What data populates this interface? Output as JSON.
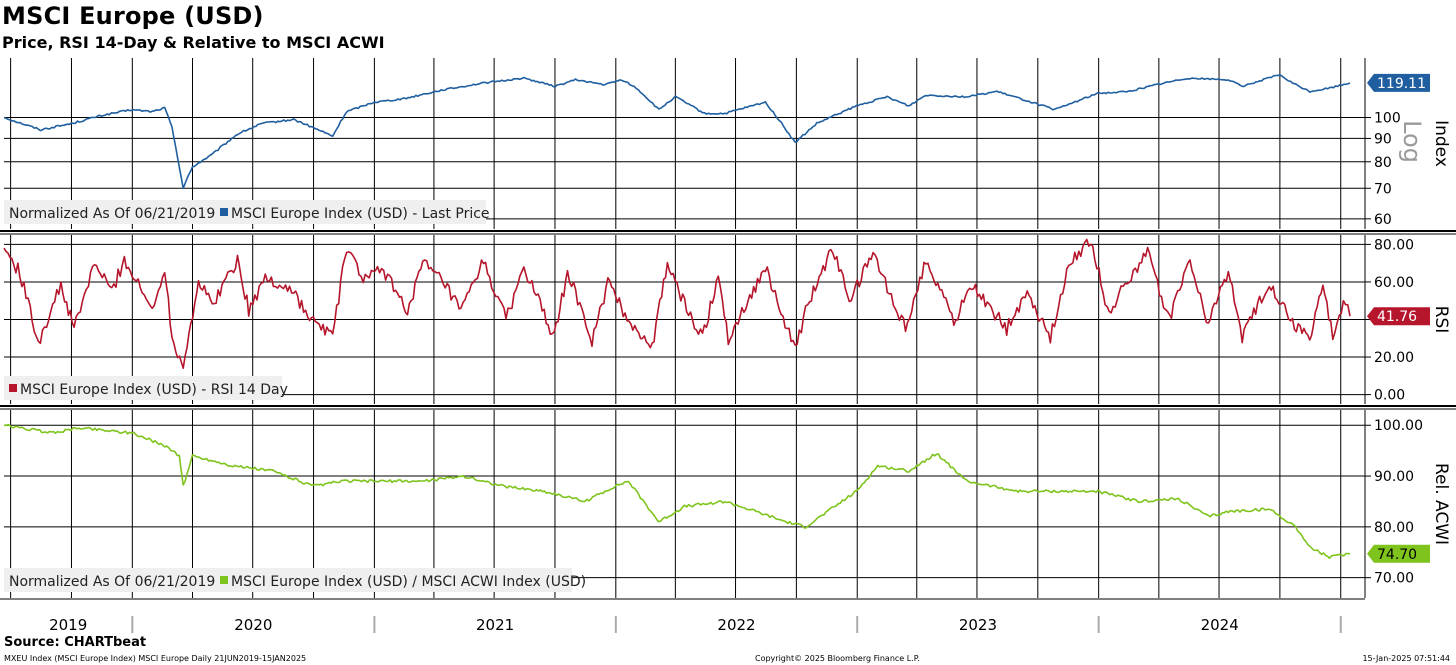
{
  "header": {
    "title": "MSCI Europe (USD)",
    "subtitle": "Price, RSI 14-Day & Relative to MSCI ACWI"
  },
  "footer": {
    "source": "Source: CHARTbeat",
    "left": "MXEU Index (MSCI Europe Index) MSCI Europe  Daily 21JUN2019-15JAN2025",
    "center": "Copyright© 2025 Bloomberg Finance L.P.",
    "right": "15-Jan-2025 07:51:44"
  },
  "chart_data": [
    {
      "type": "line",
      "panel": "price",
      "axis_title": "Index",
      "scale_note": "Log",
      "log_scale": true,
      "ylim": [
        57,
        135
      ],
      "ticks": [
        "100",
        "90",
        "80",
        "70",
        "60"
      ],
      "tick_values": [
        100,
        90,
        80,
        70,
        60
      ],
      "legend_prefix": "Normalized As Of 06/21/2019",
      "legend_placement": "bottom-left",
      "color": "#1f5fa0",
      "last_value": "119.11",
      "series": [
        {
          "name": "MSCI Europe Index (USD) - Last Price",
          "points": [
            [
              "2019-06-21",
              100
            ],
            [
              "2019-08-15",
              94
            ],
            [
              "2019-10-01",
              97
            ],
            [
              "2019-11-15",
              101
            ],
            [
              "2019-12-31",
              104
            ],
            [
              "2020-01-31",
              103
            ],
            [
              "2020-02-19",
              105
            ],
            [
              "2020-03-01",
              95
            ],
            [
              "2020-03-12",
              78
            ],
            [
              "2020-03-18",
              70
            ],
            [
              "2020-04-01",
              78
            ],
            [
              "2020-05-01",
              83
            ],
            [
              "2020-06-08",
              92
            ],
            [
              "2020-07-15",
              97
            ],
            [
              "2020-09-01",
              99
            ],
            [
              "2020-10-30",
              91
            ],
            [
              "2020-11-20",
              103
            ],
            [
              "2020-12-31",
              108
            ],
            [
              "2021-02-15",
              110
            ],
            [
              "2021-04-15",
              115
            ],
            [
              "2021-06-15",
              119
            ],
            [
              "2021-08-15",
              122
            ],
            [
              "2021-10-01",
              117
            ],
            [
              "2021-11-01",
              121
            ],
            [
              "2021-12-15",
              118
            ],
            [
              "2022-01-10",
              121
            ],
            [
              "2022-02-01",
              116
            ],
            [
              "2022-03-07",
              104
            ],
            [
              "2022-04-01",
              111
            ],
            [
              "2022-05-15",
              102
            ],
            [
              "2022-06-15",
              102
            ],
            [
              "2022-08-15",
              108
            ],
            [
              "2022-09-29",
              88
            ],
            [
              "2022-11-01",
              97
            ],
            [
              "2022-12-31",
              106
            ],
            [
              "2023-02-15",
              111
            ],
            [
              "2023-03-20",
              106
            ],
            [
              "2023-04-15",
              112
            ],
            [
              "2023-06-15",
              111
            ],
            [
              "2023-07-31",
              114
            ],
            [
              "2023-10-27",
              104
            ],
            [
              "2023-12-31",
              113
            ],
            [
              "2024-02-15",
              114
            ],
            [
              "2024-03-28",
              118
            ],
            [
              "2024-05-15",
              122
            ],
            [
              "2024-07-15",
              121
            ],
            [
              "2024-08-05",
              117
            ],
            [
              "2024-09-30",
              124
            ],
            [
              "2024-10-20",
              119
            ],
            [
              "2024-11-15",
              114
            ],
            [
              "2024-12-15",
              116
            ],
            [
              "2025-01-15",
              119.11
            ]
          ]
        }
      ]
    },
    {
      "type": "line",
      "panel": "rsi",
      "axis_title": "RSI",
      "ylim": [
        -5,
        85
      ],
      "ticks": [
        "80.00",
        "60.00",
        "40.00",
        "20.00",
        "0.00"
      ],
      "tick_values": [
        80,
        60,
        40,
        20,
        0
      ],
      "legend_placement": "bottom-left",
      "color": "#b5162b",
      "last_value": "41.76",
      "series": [
        {
          "name": "MSCI Europe Index (USD) - RSI 14 Day",
          "points": [
            [
              "2019-06-21",
              78
            ],
            [
              "2019-07-15",
              65
            ],
            [
              "2019-08-12",
              28
            ],
            [
              "2019-09-15",
              58
            ],
            [
              "2019-10-05",
              35
            ],
            [
              "2019-11-05",
              70
            ],
            [
              "2019-12-01",
              55
            ],
            [
              "2019-12-20",
              72
            ],
            [
              "2020-01-31",
              45
            ],
            [
              "2020-02-19",
              68
            ],
            [
              "2020-03-01",
              30
            ],
            [
              "2020-03-18",
              16
            ],
            [
              "2020-04-10",
              60
            ],
            [
              "2020-05-01",
              48
            ],
            [
              "2020-06-08",
              72
            ],
            [
              "2020-06-25",
              45
            ],
            [
              "2020-07-20",
              62
            ],
            [
              "2020-09-01",
              55
            ],
            [
              "2020-09-25",
              40
            ],
            [
              "2020-10-30",
              32
            ],
            [
              "2020-11-20",
              78
            ],
            [
              "2020-12-15",
              62
            ],
            [
              "2021-01-15",
              66
            ],
            [
              "2021-02-20",
              45
            ],
            [
              "2021-03-15",
              70
            ],
            [
              "2021-04-15",
              60
            ],
            [
              "2021-05-12",
              44
            ],
            [
              "2021-06-15",
              71
            ],
            [
              "2021-07-19",
              40
            ],
            [
              "2021-08-15",
              68
            ],
            [
              "2021-09-30",
              30
            ],
            [
              "2021-10-20",
              66
            ],
            [
              "2021-11-26",
              28
            ],
            [
              "2021-12-20",
              60
            ],
            [
              "2022-01-15",
              42
            ],
            [
              "2022-02-25",
              25
            ],
            [
              "2022-03-20",
              70
            ],
            [
              "2022-04-15",
              48
            ],
            [
              "2022-05-12",
              30
            ],
            [
              "2022-06-05",
              64
            ],
            [
              "2022-06-20",
              30
            ],
            [
              "2022-08-15",
              68
            ],
            [
              "2022-09-29",
              23
            ],
            [
              "2022-10-15",
              45
            ],
            [
              "2022-11-25",
              78
            ],
            [
              "2022-12-20",
              50
            ],
            [
              "2023-01-25",
              75
            ],
            [
              "2023-03-15",
              35
            ],
            [
              "2023-04-15",
              72
            ],
            [
              "2023-05-30",
              38
            ],
            [
              "2023-06-20",
              60
            ],
            [
              "2023-08-15",
              35
            ],
            [
              "2023-09-15",
              55
            ],
            [
              "2023-10-20",
              30
            ],
            [
              "2023-11-20",
              72
            ],
            [
              "2023-12-20",
              82
            ],
            [
              "2024-01-17",
              42
            ],
            [
              "2024-02-10",
              60
            ],
            [
              "2024-03-15",
              75
            ],
            [
              "2024-04-17",
              40
            ],
            [
              "2024-05-15",
              72
            ],
            [
              "2024-06-15",
              38
            ],
            [
              "2024-07-15",
              66
            ],
            [
              "2024-08-05",
              30
            ],
            [
              "2024-09-15",
              60
            ],
            [
              "2024-10-20",
              38
            ],
            [
              "2024-11-15",
              30
            ],
            [
              "2024-12-05",
              58
            ],
            [
              "2024-12-20",
              30
            ],
            [
              "2025-01-05",
              50
            ],
            [
              "2025-01-15",
              41.76
            ]
          ]
        }
      ]
    },
    {
      "type": "line",
      "panel": "relative",
      "axis_title": "Rel. ACWI",
      "ylim": [
        66,
        103
      ],
      "ticks": [
        "100.00",
        "90.00",
        "80.00",
        "70.00"
      ],
      "tick_values": [
        100,
        90,
        80,
        70
      ],
      "legend_prefix": "Normalized As Of 06/21/2019",
      "legend_placement": "bottom-left",
      "color": "#7ec41d",
      "last_value": "74.70",
      "x_tick_labels": [
        "2019",
        "2020",
        "2021",
        "2022",
        "2023",
        "2024"
      ],
      "series": [
        {
          "name": "MSCI Europe Index (USD) / MSCI ACWI Index (USD)",
          "points": [
            [
              "2019-06-21",
              100
            ],
            [
              "2019-09-01",
              98.5
            ],
            [
              "2019-10-15",
              99.5
            ],
            [
              "2019-12-31",
              98.5
            ],
            [
              "2020-02-19",
              96
            ],
            [
              "2020-03-12",
              94
            ],
            [
              "2020-03-18",
              88
            ],
            [
              "2020-04-01",
              94
            ],
            [
              "2020-06-01",
              92
            ],
            [
              "2020-08-01",
              91
            ],
            [
              "2020-09-30",
              88
            ],
            [
              "2020-11-15",
              89
            ],
            [
              "2020-12-31",
              89
            ],
            [
              "2021-03-15",
              89
            ],
            [
              "2021-05-15",
              90
            ],
            [
              "2021-07-15",
              88
            ],
            [
              "2021-09-15",
              87
            ],
            [
              "2021-11-15",
              85
            ],
            [
              "2021-12-31",
              88
            ],
            [
              "2022-01-20",
              89
            ],
            [
              "2022-03-07",
              81
            ],
            [
              "2022-04-15",
              84
            ],
            [
              "2022-06-15",
              85
            ],
            [
              "2022-08-01",
              83
            ],
            [
              "2022-09-15",
              81
            ],
            [
              "2022-10-15",
              80
            ],
            [
              "2022-12-31",
              87
            ],
            [
              "2023-02-01",
              92
            ],
            [
              "2023-03-20",
              91
            ],
            [
              "2023-05-01",
              94.5
            ],
            [
              "2023-06-15",
              89
            ],
            [
              "2023-09-01",
              87
            ],
            [
              "2023-12-31",
              87
            ],
            [
              "2024-03-01",
              85
            ],
            [
              "2024-05-01",
              85.5
            ],
            [
              "2024-06-15",
              82
            ],
            [
              "2024-07-15",
              83
            ],
            [
              "2024-09-15",
              83.5
            ],
            [
              "2024-10-25",
              80
            ],
            [
              "2024-11-15",
              76
            ],
            [
              "2024-12-15",
              74
            ],
            [
              "2025-01-15",
              74.7
            ]
          ]
        }
      ]
    }
  ]
}
